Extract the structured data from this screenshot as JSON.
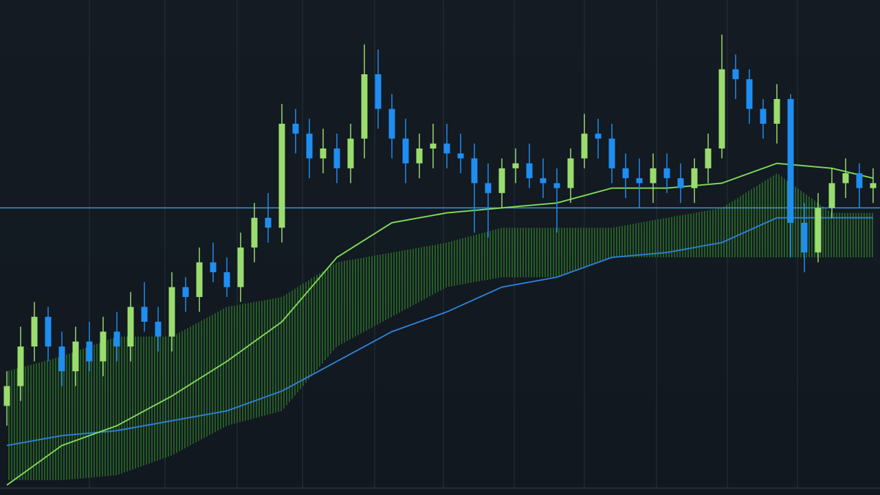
{
  "chart_data": {
    "type": "candlestick",
    "xlim": [
      -0.5,
      63.5
    ],
    "ylim": [
      0,
      100
    ],
    "up_color": "#9bdc6e",
    "down_color": "#1f8ef1",
    "open": [
      18,
      22,
      30,
      36,
      30,
      25,
      31,
      27,
      33,
      30,
      38,
      35,
      32,
      42,
      40,
      47,
      45,
      42,
      50,
      56,
      54,
      75,
      73,
      68,
      70,
      66,
      72,
      85,
      78,
      72,
      67,
      70,
      71,
      69,
      68,
      63,
      61,
      66,
      67,
      64,
      63,
      62,
      68,
      73,
      72,
      66,
      64,
      63,
      66,
      64,
      62,
      66,
      70,
      86,
      84,
      78,
      75,
      80,
      55,
      49,
      58,
      63,
      65,
      62
    ],
    "close": [
      22,
      30,
      36,
      30,
      25,
      31,
      27,
      33,
      30,
      38,
      35,
      32,
      42,
      40,
      47,
      45,
      42,
      50,
      56,
      54,
      75,
      73,
      68,
      70,
      66,
      72,
      85,
      78,
      72,
      67,
      70,
      71,
      69,
      68,
      63,
      61,
      66,
      67,
      64,
      63,
      62,
      68,
      73,
      72,
      66,
      64,
      63,
      66,
      64,
      62,
      66,
      70,
      86,
      84,
      78,
      75,
      80,
      55,
      49,
      58,
      63,
      65,
      62,
      63
    ],
    "high": [
      25,
      34,
      39,
      38,
      33,
      34,
      35,
      36,
      37,
      41,
      43,
      38,
      45,
      44,
      50,
      51,
      48,
      53,
      59,
      61,
      79,
      78,
      76,
      74,
      73,
      75,
      91,
      90,
      81,
      76,
      73,
      75,
      75,
      73,
      71,
      67,
      68,
      70,
      71,
      68,
      66,
      70,
      77,
      76,
      75,
      69,
      68,
      69,
      69,
      67,
      68,
      73,
      93,
      89,
      86,
      80,
      83,
      81,
      59,
      61,
      66,
      68,
      67,
      66
    ],
    "low": [
      14,
      19,
      27,
      27,
      22,
      22,
      25,
      24,
      27,
      27,
      33,
      29,
      29,
      37,
      37,
      43,
      40,
      39,
      47,
      51,
      51,
      69,
      64,
      65,
      63,
      63,
      68,
      74,
      68,
      63,
      64,
      66,
      66,
      65,
      53,
      52,
      58,
      63,
      62,
      60,
      53,
      59,
      66,
      68,
      63,
      60,
      58,
      59,
      61,
      59,
      59,
      63,
      68,
      80,
      75,
      72,
      71,
      48,
      45,
      47,
      56,
      60,
      58,
      59
    ],
    "fast_ma": {
      "color": "#7ed957",
      "x": [
        0,
        4,
        8,
        12,
        16,
        20,
        24,
        28,
        32,
        36,
        40,
        44,
        48,
        52,
        56,
        60,
        63
      ],
      "values": [
        2,
        10,
        14,
        20,
        27,
        35,
        48,
        55,
        57,
        58,
        59,
        62,
        62,
        63,
        67,
        66,
        64
      ]
    },
    "slow_ma": {
      "color": "#2d7fd3",
      "x": [
        0,
        4,
        8,
        12,
        16,
        20,
        24,
        28,
        32,
        36,
        40,
        44,
        48,
        52,
        56,
        60,
        63
      ],
      "values": [
        10,
        12,
        13,
        15,
        17,
        21,
        27,
        33,
        37,
        42,
        44,
        48,
        49,
        51,
        56,
        56,
        56
      ]
    },
    "band": {
      "color": "#3fae2a",
      "x": [
        0,
        4,
        8,
        12,
        16,
        20,
        24,
        28,
        32,
        36,
        40,
        44,
        48,
        52,
        56,
        60,
        63
      ],
      "upper": [
        25,
        28,
        32,
        32,
        38,
        40,
        47,
        49,
        51,
        54,
        54,
        54,
        56,
        58,
        65,
        57,
        57
      ],
      "lower": [
        3,
        3,
        4,
        8,
        14,
        17,
        30,
        36,
        42,
        44,
        44,
        48,
        48,
        48,
        48,
        48,
        48
      ]
    },
    "hline": {
      "value": 58,
      "color": "#3a9ad9"
    }
  }
}
